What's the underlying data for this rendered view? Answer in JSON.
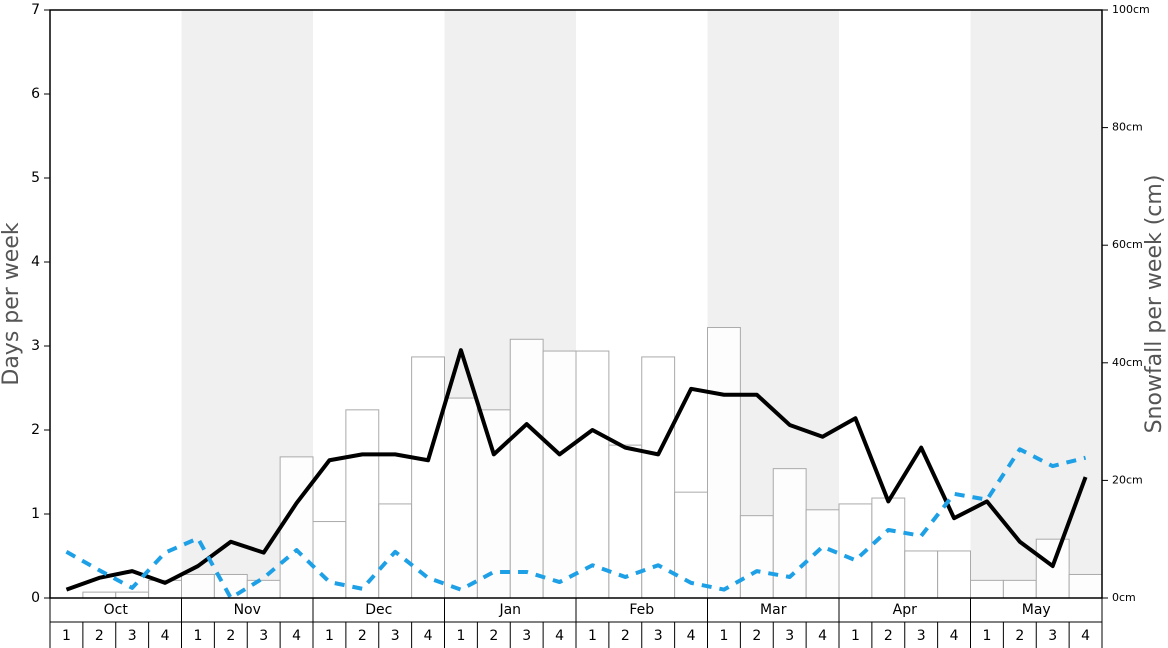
{
  "chart_data": {
    "type": "bar",
    "ylabel": "Days per week",
    "y2label": "Snowfall per week (cm)",
    "months": [
      "Oct",
      "Nov",
      "Dec",
      "Jan",
      "Feb",
      "Mar",
      "Apr",
      "May"
    ],
    "categories": [
      "1",
      "2",
      "3",
      "4",
      "1",
      "2",
      "3",
      "4",
      "1",
      "2",
      "3",
      "4",
      "1",
      "2",
      "3",
      "4",
      "1",
      "2",
      "3",
      "4",
      "1",
      "2",
      "3",
      "4",
      "1",
      "2",
      "3",
      "4",
      "1",
      "2",
      "3",
      "4"
    ],
    "ylim": [
      0,
      7
    ],
    "yticks": [
      0,
      1,
      2,
      3,
      4,
      5,
      6,
      7
    ],
    "y2lim": [
      0,
      100
    ],
    "y2ticks": [
      {
        "value": 0,
        "label": "0cm"
      },
      {
        "value": 20,
        "label": "20cm"
      },
      {
        "value": 40,
        "label": "40cm"
      },
      {
        "value": 60,
        "label": "60cm"
      },
      {
        "value": 80,
        "label": "80cm"
      },
      {
        "value": 100,
        "label": "100cm"
      }
    ],
    "series": [
      {
        "type": "bar",
        "axis": "y2",
        "color": "#ffffff",
        "values": [
          0,
          1,
          1,
          3,
          4,
          4,
          3,
          24,
          13,
          32,
          16,
          41,
          34,
          32,
          44,
          42,
          42,
          26,
          41,
          18,
          46,
          14,
          22,
          15,
          16,
          17,
          8,
          8,
          3,
          3,
          10,
          4
        ]
      },
      {
        "type": "line",
        "axis": "y",
        "color": "#000000",
        "dash": false,
        "values": [
          0.1,
          0.24,
          0.32,
          0.18,
          0.38,
          0.67,
          0.54,
          1.13,
          1.64,
          1.71,
          1.71,
          1.64,
          2.95,
          1.71,
          2.07,
          1.71,
          2.0,
          1.79,
          1.71,
          2.49,
          2.42,
          2.42,
          2.06,
          1.92,
          2.14,
          1.15,
          1.79,
          0.95,
          1.15,
          0.67,
          0.38,
          1.44
        ]
      },
      {
        "type": "line",
        "axis": "y",
        "color": "#1ea0e6",
        "dash": true,
        "values": [
          0.55,
          0.33,
          0.12,
          0.54,
          0.71,
          0,
          0.24,
          0.57,
          0.19,
          0.11,
          0.55,
          0.24,
          0.1,
          0.31,
          0.31,
          0.19,
          0.39,
          0.25,
          0.39,
          0.18,
          0.1,
          0.32,
          0.25,
          0.61,
          0.45,
          0.81,
          0.74,
          1.24,
          1.17,
          1.77,
          1.57,
          1.67
        ]
      }
    ]
  }
}
